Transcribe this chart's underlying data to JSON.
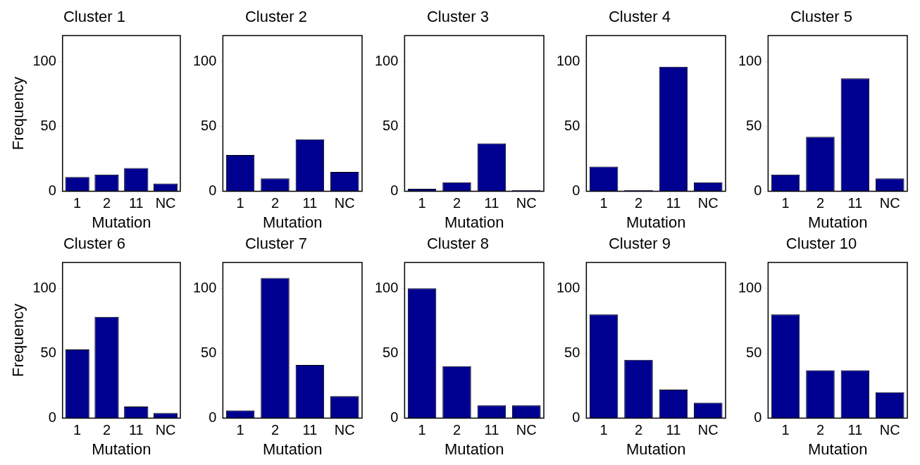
{
  "chart_data": [
    {
      "type": "bar",
      "title": "Cluster 1",
      "xlabel": "Mutation",
      "ylabel": "Frequency",
      "categories": [
        "1",
        "2",
        "11",
        "NC"
      ],
      "values": [
        11,
        13,
        18,
        6
      ],
      "color": "#000090",
      "ylim": [
        0,
        120
      ],
      "yticks": [
        0,
        50,
        100
      ]
    },
    {
      "type": "bar",
      "title": "Cluster 2",
      "xlabel": "Mutation",
      "categories": [
        "1",
        "2",
        "11",
        "NC"
      ],
      "values": [
        28,
        10,
        40,
        15
      ],
      "color": "#000090",
      "ylim": [
        0,
        120
      ],
      "yticks": [
        0,
        50,
        100
      ]
    },
    {
      "type": "bar",
      "title": "Cluster 3",
      "xlabel": "Mutation",
      "categories": [
        "1",
        "2",
        "11",
        "NC"
      ],
      "values": [
        2,
        7,
        37,
        1
      ],
      "color": "#000090",
      "ylim": [
        0,
        120
      ],
      "yticks": [
        0,
        50,
        100
      ]
    },
    {
      "type": "bar",
      "title": "Cluster 4",
      "xlabel": "Mutation",
      "categories": [
        "1",
        "2",
        "11",
        "NC"
      ],
      "values": [
        19,
        1,
        96,
        7
      ],
      "color": "#000090",
      "ylim": [
        0,
        120
      ],
      "yticks": [
        0,
        50,
        100
      ]
    },
    {
      "type": "bar",
      "title": "Cluster 5",
      "xlabel": "Mutation",
      "categories": [
        "1",
        "2",
        "11",
        "NC"
      ],
      "values": [
        13,
        42,
        87,
        10
      ],
      "color": "#000090",
      "ylim": [
        0,
        120
      ],
      "yticks": [
        0,
        50,
        100
      ]
    },
    {
      "type": "bar",
      "title": "Cluster 6",
      "xlabel": "Mutation",
      "ylabel": "Frequency",
      "categories": [
        "1",
        "2",
        "11",
        "NC"
      ],
      "values": [
        53,
        78,
        9,
        4
      ],
      "color": "#000090",
      "ylim": [
        0,
        120
      ],
      "yticks": [
        0,
        50,
        100
      ]
    },
    {
      "type": "bar",
      "title": "Cluster 7",
      "xlabel": "Mutation",
      "categories": [
        "1",
        "2",
        "11",
        "NC"
      ],
      "values": [
        6,
        108,
        41,
        17
      ],
      "color": "#000090",
      "ylim": [
        0,
        120
      ],
      "yticks": [
        0,
        50,
        100
      ]
    },
    {
      "type": "bar",
      "title": "Cluster 8",
      "xlabel": "Mutation",
      "categories": [
        "1",
        "2",
        "11",
        "NC"
      ],
      "values": [
        100,
        40,
        10,
        10
      ],
      "color": "#000090",
      "ylim": [
        0,
        120
      ],
      "yticks": [
        0,
        50,
        100
      ]
    },
    {
      "type": "bar",
      "title": "Cluster 9",
      "xlabel": "Mutation",
      "categories": [
        "1",
        "2",
        "11",
        "NC"
      ],
      "values": [
        80,
        45,
        22,
        12
      ],
      "color": "#000090",
      "ylim": [
        0,
        120
      ],
      "yticks": [
        0,
        50,
        100
      ]
    },
    {
      "type": "bar",
      "title": "Cluster 10",
      "xlabel": "Mutation",
      "categories": [
        "1",
        "2",
        "11",
        "NC"
      ],
      "values": [
        80,
        37,
        37,
        20
      ],
      "color": "#000090",
      "ylim": [
        0,
        120
      ],
      "yticks": [
        0,
        50,
        100
      ]
    }
  ]
}
